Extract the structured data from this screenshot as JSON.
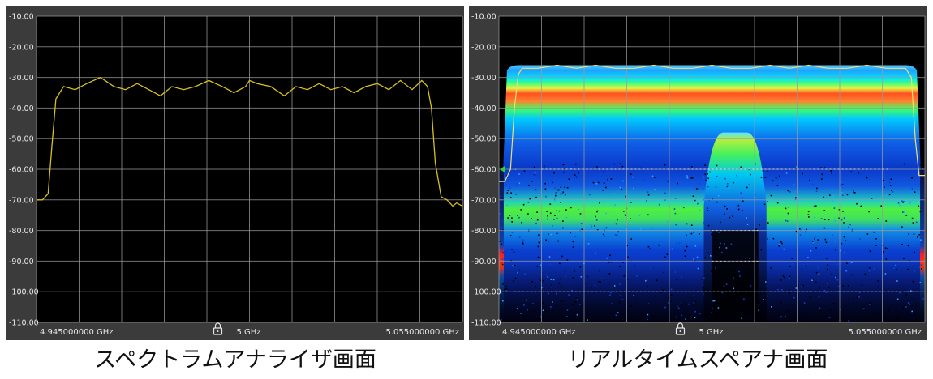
{
  "chart_data": [
    {
      "type": "line",
      "title": "スペクトラムアナライザ画面",
      "y_ticks": [
        "-10.00",
        "-20.00",
        "-30.00",
        "-40.00",
        "-50.00",
        "-60.00",
        "-70.00",
        "-80.00",
        "-90.00",
        "-100.00",
        "-110.00"
      ],
      "ylim": [
        -110,
        -10
      ],
      "xlim": [
        4.945,
        5.055
      ],
      "x_start_label": "4.945000000 GHz",
      "x_center_label": "5 GHz",
      "x_end_label": "5.055000000 GHz",
      "grid": true,
      "series": [
        {
          "color": "#d8c020",
          "x": [
            4.945,
            4.9465,
            4.948,
            4.949,
            4.95,
            4.951,
            4.952,
            4.955,
            4.958,
            4.9615,
            4.965,
            4.968,
            4.971,
            4.974,
            4.977,
            4.98,
            4.983,
            4.986,
            4.9895,
            4.993,
            4.996,
            4.999,
            5.0,
            5.002,
            5.0055,
            5.009,
            5.012,
            5.015,
            5.018,
            5.021,
            5.024,
            5.027,
            5.03,
            5.033,
            5.036,
            5.039,
            5.042,
            5.0445,
            5.046,
            5.047,
            5.048,
            5.0495,
            5.051,
            5.0525,
            5.0535,
            5.055
          ],
          "y": [
            -70,
            -70,
            -68,
            -52,
            -37,
            -35,
            -33,
            -34,
            -32,
            -30,
            -33,
            -34,
            -32,
            -34,
            -36,
            -33,
            -34,
            -33,
            -31,
            -33,
            -35,
            -33,
            -31,
            -32,
            -33,
            -36,
            -33,
            -34,
            -32,
            -34,
            -33,
            -35,
            -33,
            -32,
            -34,
            -31,
            -34,
            -31,
            -33,
            -40,
            -58,
            -69,
            -70,
            -72,
            -71,
            -72
          ]
        }
      ]
    },
    {
      "type": "heatmap",
      "title": "リアルタイムスペアナ画面",
      "y_ticks": [
        "-10.00",
        "-20.00",
        "-30.00",
        "-40.00",
        "-50.00",
        "-60.00",
        "-70.00",
        "-80.00",
        "-90.00",
        "-100.00",
        "-110.00"
      ],
      "ylim": [
        -110,
        -10
      ],
      "xlim": [
        4.945,
        5.055
      ],
      "x_start_label": "4.945000000 GHz",
      "x_center_label": "5 GHz",
      "x_end_label": "5.055000000 GHz",
      "grid": true,
      "band_edges": [
        4.9475,
        5.0525
      ],
      "dense_levels": [
        -28,
        -35,
        -71
      ],
      "narrow_signal": [
        5.0,
        5.012,
        -48
      ],
      "threshold_level": -60,
      "trace": {
        "color": "#f0e070",
        "x": [
          4.945,
          4.9465,
          4.948,
          4.949,
          4.95,
          4.951,
          4.955,
          4.96,
          4.965,
          4.97,
          4.975,
          4.98,
          4.985,
          4.99,
          4.995,
          5.0,
          5.005,
          5.01,
          5.015,
          5.02,
          5.025,
          5.03,
          5.035,
          5.04,
          5.045,
          5.05,
          5.0515,
          5.0525,
          5.0535,
          5.055
        ],
        "y": [
          -64,
          -64,
          -60,
          -40,
          -29,
          -27,
          -27,
          -26,
          -27,
          -26,
          -27,
          -27,
          -26,
          -27,
          -27,
          -26,
          -27,
          -27,
          -26,
          -27,
          -26,
          -27,
          -27,
          -26,
          -27,
          -27,
          -30,
          -50,
          -62,
          -62
        ]
      }
    }
  ]
}
